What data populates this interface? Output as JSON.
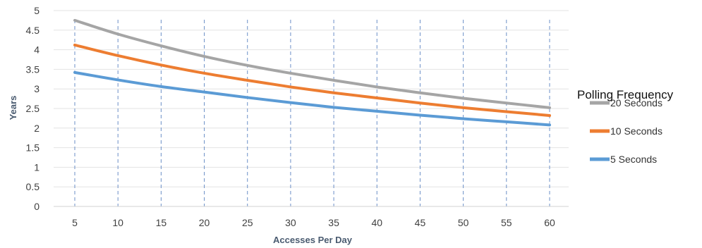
{
  "chart_data": {
    "type": "line",
    "title": "",
    "xlabel": "Accesses Per Day",
    "ylabel": "Years",
    "x": [
      5,
      10,
      15,
      20,
      25,
      30,
      35,
      40,
      45,
      50,
      55,
      60
    ],
    "ylim": [
      0,
      5
    ],
    "yticks": [
      "0",
      "0.5",
      "1",
      "1.5",
      "2",
      "2.5",
      "3",
      "3.5",
      "4",
      "4.5",
      "5"
    ],
    "xticks": [
      "5",
      "10",
      "15",
      "20",
      "25",
      "30",
      "35",
      "40",
      "45",
      "50",
      "55",
      "60"
    ],
    "grid": "horizontal solid, vertical dashed",
    "legend_title": "Polling Frequency",
    "legend_position": "right",
    "series": [
      {
        "name": "20 Seconds",
        "color": "#a5a5a5",
        "values": [
          4.75,
          4.4,
          4.1,
          3.83,
          3.6,
          3.4,
          3.22,
          3.05,
          2.9,
          2.76,
          2.64,
          2.52
        ]
      },
      {
        "name": "10 Seconds",
        "color": "#ed7d31",
        "values": [
          4.12,
          3.85,
          3.61,
          3.4,
          3.22,
          3.05,
          2.9,
          2.77,
          2.64,
          2.52,
          2.42,
          2.32
        ]
      },
      {
        "name": "5 Seconds",
        "color": "#5b9bd5",
        "values": [
          3.42,
          3.23,
          3.06,
          2.92,
          2.78,
          2.65,
          2.53,
          2.43,
          2.33,
          2.24,
          2.16,
          2.08
        ]
      }
    ]
  }
}
